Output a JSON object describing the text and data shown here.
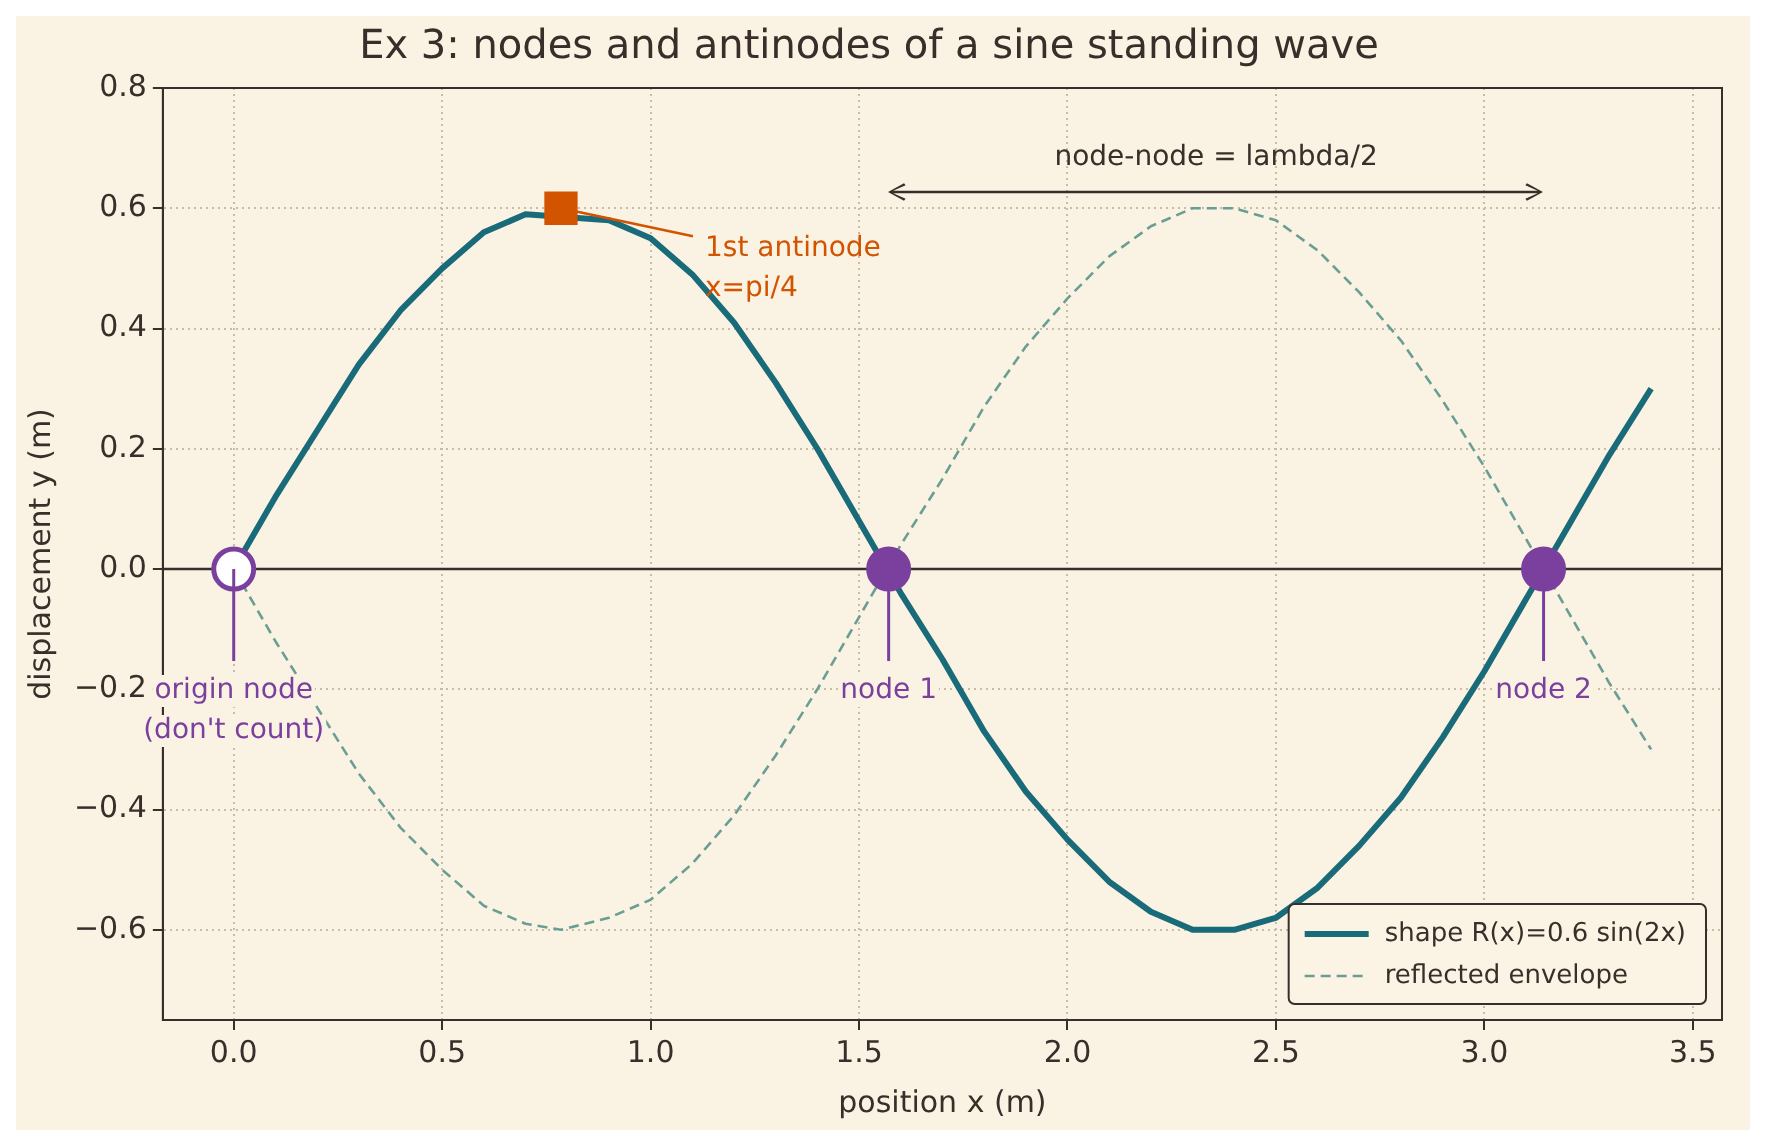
{
  "chart_data": {
    "type": "line",
    "title": "Ex 3: nodes and antinodes of a sine standing wave",
    "xlabel": "position x (m)",
    "ylabel": "displacement y (m)",
    "xlim": [
      -0.17,
      3.57
    ],
    "ylim": [
      -0.75,
      0.8
    ],
    "xticks": [
      {
        "value": 0,
        "label": "0.0"
      },
      {
        "value": 0.5,
        "label": "0.5"
      },
      {
        "value": 1,
        "label": "1.0"
      },
      {
        "value": 1.5,
        "label": "1.5"
      },
      {
        "value": 2,
        "label": "2.0"
      },
      {
        "value": 2.5,
        "label": "2.5"
      },
      {
        "value": 3,
        "label": "3.0"
      },
      {
        "value": 3.5,
        "label": "3.5"
      }
    ],
    "yticks": [
      {
        "value": -0.6,
        "label": "−0.6"
      },
      {
        "value": -0.4,
        "label": "−0.4"
      },
      {
        "value": -0.2,
        "label": "−0.2"
      },
      {
        "value": 0,
        "label": "0.0"
      },
      {
        "value": 0.2,
        "label": "0.2"
      },
      {
        "value": 0.4,
        "label": "0.4"
      },
      {
        "value": 0.6,
        "label": "0.6"
      },
      {
        "value": 0.8,
        "label": "0.8"
      }
    ],
    "grid": true,
    "legend": "bottom right",
    "ref_lines": [
      {
        "axis": "y",
        "value": 0,
        "color": "#3a2e2a"
      }
    ],
    "series": [
      {
        "name": "shape R(x)=0.6 sin(2x)",
        "type": "line",
        "color": "#1a6b7a",
        "line_style": "solid",
        "marker": "none",
        "x": [
          0,
          0.1,
          0.2,
          0.3,
          0.4,
          0.5,
          0.6,
          0.7,
          0.9,
          1.0,
          1.1,
          1.2,
          1.3,
          1.4,
          1.5,
          1.6,
          1.7,
          1.8,
          1.9,
          2.0,
          2.1,
          2.2,
          2.3,
          2.356,
          2.4,
          2.5,
          2.6,
          2.7,
          2.8,
          2.9,
          3.0,
          3.1,
          3.2,
          3.3,
          3.4
        ],
        "values": [
          0,
          0.12,
          0.23,
          0.34,
          0.43,
          0.5,
          0.56,
          0.59,
          0.58,
          0.55,
          0.49,
          0.41,
          0.31,
          0.2,
          0.08,
          -0.04,
          -0.15,
          -0.27,
          -0.37,
          -0.45,
          -0.52,
          -0.57,
          -0.6,
          -0.6,
          -0.6,
          -0.58,
          -0.53,
          -0.46,
          -0.38,
          -0.28,
          -0.17,
          -0.05,
          0.07,
          0.19,
          0.3
        ]
      },
      {
        "name": "reflected envelope",
        "type": "line",
        "color": "#6a9e94",
        "line_style": "dashed",
        "marker": "none",
        "x": [
          0,
          0.1,
          0.2,
          0.3,
          0.4,
          0.5,
          0.6,
          0.7,
          0.785,
          0.9,
          1.0,
          1.1,
          1.2,
          1.3,
          1.4,
          1.5,
          1.6,
          1.7,
          1.8,
          1.9,
          2.0,
          2.1,
          2.2,
          2.3,
          2.356,
          2.4,
          2.5,
          2.6,
          2.7,
          2.8,
          2.9,
          3.0,
          3.1,
          3.2,
          3.3,
          3.4
        ],
        "values": [
          0,
          -0.12,
          -0.23,
          -0.34,
          -0.43,
          -0.5,
          -0.56,
          -0.59,
          -0.6,
          -0.58,
          -0.55,
          -0.49,
          -0.41,
          -0.31,
          -0.2,
          -0.08,
          0.04,
          0.15,
          0.27,
          0.37,
          0.45,
          0.52,
          0.57,
          0.6,
          0.6,
          0.6,
          0.58,
          0.53,
          0.46,
          0.38,
          0.28,
          0.17,
          0.05,
          -0.07,
          -0.19,
          -0.3
        ]
      },
      {
        "type": "scatter",
        "color": "#d35400",
        "marker": "square",
        "x": [
          0.785
        ],
        "values": [
          0.6
        ]
      },
      {
        "type": "scatter",
        "color": "#7b3f9e",
        "marker": "circle",
        "x": [
          0,
          1.571,
          3.142
        ],
        "values": [
          0,
          0,
          0
        ],
        "colors": [
          "#ffffff",
          "#7b3f9e",
          "#7b3f9e"
        ]
      }
    ],
    "annotations": [
      {
        "text": "1st antinode\nx=pi/4",
        "x": 0.785,
        "y": 0.6
      },
      {
        "text": "origin node\n(don't count)",
        "x": 0,
        "y": 0
      },
      {
        "text": "node 1",
        "x": 1.571,
        "y": 0
      },
      {
        "text": "node 2",
        "x": 3.142,
        "y": 0
      },
      "node-node = lambda/2"
    ]
  }
}
